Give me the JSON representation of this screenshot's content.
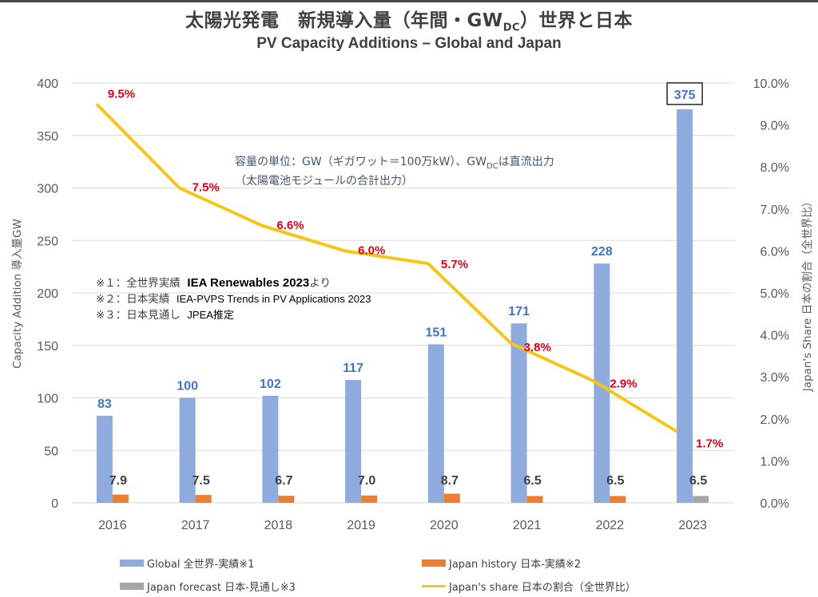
{
  "title": {
    "jp_main": "太陽光発電　新規導入量（年間・GW",
    "jp_sub": "DC",
    "jp_tail": "）世界と日本",
    "en": "PV Capacity Additions – Global and Japan"
  },
  "unit_note": {
    "line1_a": "容量の単位：GW（ギガワット＝100万kW）、GW",
    "line1_sub": "DC",
    "line1_b": "は直流出力",
    "line2": "（太陽電池モジュールの合計出力）"
  },
  "source_notes": [
    {
      "mark": "※１：全世界実績",
      "source": "IEA Renewables 2023",
      "tail": "より"
    },
    {
      "mark": "※２：日本実績",
      "source": "IEA-PVPS Trends in PV Applications 2023",
      "tail": ""
    },
    {
      "mark": "※３：日本見通し",
      "source": "JPEA推定",
      "tail": ""
    }
  ],
  "legend": [
    {
      "label": "Global 全世界-実績※1",
      "color": "#8faadc",
      "kind": "bar"
    },
    {
      "label": "Japan history 日本-実績※2",
      "color": "#ed7d31",
      "kind": "bar"
    },
    {
      "label": "Japan forecast 日本-見通し※3",
      "color": "#a5a5a5",
      "kind": "bar"
    },
    {
      "label": "Japan's share 日本の割合（全世界比）",
      "color": "#f5c518",
      "kind": "line"
    }
  ],
  "chart_data": {
    "type": "bar",
    "title": "太陽光発電　新規導入量（年間・GWDC）世界と日本 / PV Capacity Additions – Global and Japan",
    "categories": [
      "2016",
      "2017",
      "2018",
      "2019",
      "2020",
      "2021",
      "2022",
      "2023"
    ],
    "ylabel": "Capacity Addition 導入量GW",
    "y2label": "Japan's Share 日本の割合（全世界比）",
    "ylim": [
      0,
      400
    ],
    "y2lim": [
      0,
      10
    ],
    "yticks": [
      "0",
      "50",
      "100",
      "150",
      "200",
      "250",
      "300",
      "350",
      "400"
    ],
    "y2ticks": [
      "0.0%",
      "1.0%",
      "2.0%",
      "3.0%",
      "4.0%",
      "5.0%",
      "6.0%",
      "7.0%",
      "8.0%",
      "9.0%",
      "10.0%"
    ],
    "grid": true,
    "legend_position": "bottom",
    "series": [
      {
        "name": "Global 全世界-実績※1",
        "type": "bar",
        "axis": "left",
        "color": "#8faadc",
        "values": [
          83,
          100,
          102,
          117,
          151,
          171,
          228,
          375
        ],
        "labels": [
          "83",
          "100",
          "102",
          "117",
          "151",
          "171",
          "228",
          "375"
        ]
      },
      {
        "name": "Japan history 日本-実績※2",
        "type": "bar",
        "axis": "left",
        "color": "#ed7d31",
        "values": [
          7.9,
          7.5,
          6.7,
          7.0,
          8.7,
          6.5,
          6.5,
          null
        ],
        "labels": [
          "7.9",
          "7.5",
          "6.7",
          "7.0",
          "8.7",
          "6.5",
          "6.5",
          ""
        ]
      },
      {
        "name": "Japan forecast 日本-見通し※3",
        "type": "bar",
        "axis": "left",
        "color": "#a5a5a5",
        "values": [
          null,
          null,
          null,
          null,
          null,
          null,
          null,
          6.5
        ],
        "labels": [
          "",
          "",
          "",
          "",
          "",
          "",
          "",
          "6.5"
        ]
      },
      {
        "name": "Japan's share 日本の割合（全世界比）",
        "type": "line",
        "axis": "right",
        "color": "#f5c518",
        "values": [
          9.5,
          7.5,
          6.6,
          6.0,
          5.7,
          3.8,
          2.9,
          1.7
        ],
        "labels": [
          "9.5%",
          "7.5%",
          "6.6%",
          "6.0%",
          "5.7%",
          "3.8%",
          "2.9%",
          "1.7%"
        ]
      }
    ],
    "highlighted_label": "375"
  }
}
